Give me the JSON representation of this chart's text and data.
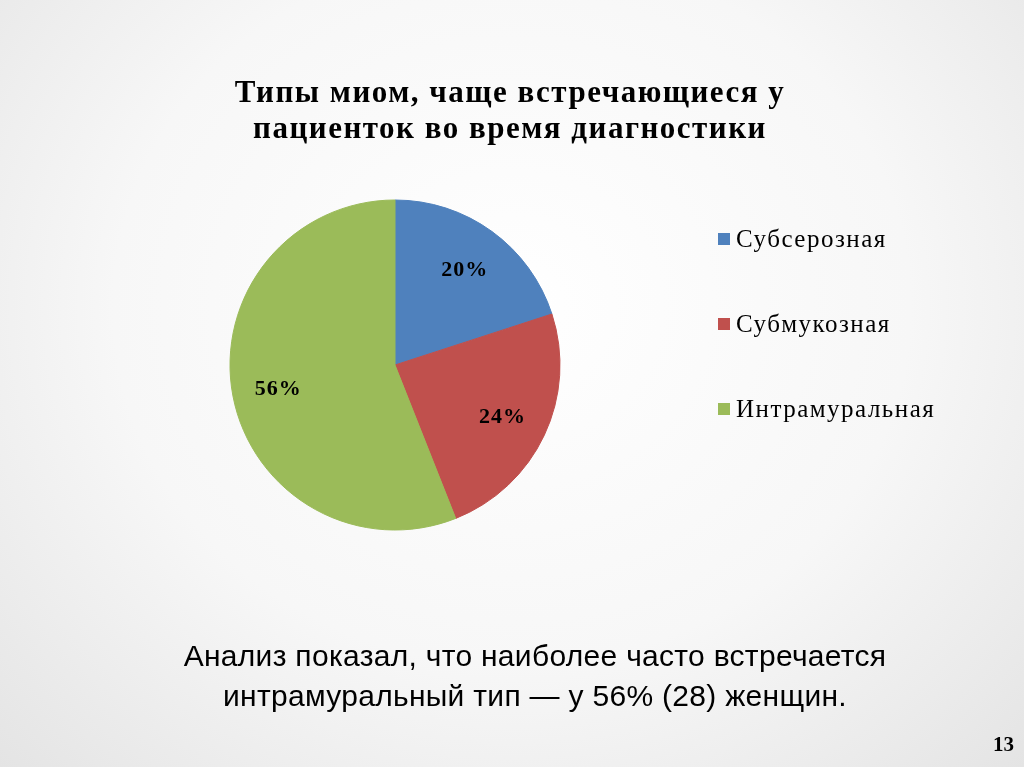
{
  "chart_data": {
    "type": "pie",
    "title": "Типы миом, чаще встречающиеся у пациенток во время диагностики",
    "categories": [
      "Субсерозная",
      "Субмукозная",
      "Интрамуральная"
    ],
    "values": [
      20,
      24,
      56
    ],
    "colors": [
      "#4f81bd",
      "#c0504d",
      "#9bbb59"
    ],
    "value_labels": [
      "20%",
      "24%",
      "56%"
    ],
    "legend": "right",
    "annotations": [
      "Анализ показал, что наиболее часто встречается интрамуральный тип — у 56% (28) женщин.",
      "13"
    ]
  }
}
